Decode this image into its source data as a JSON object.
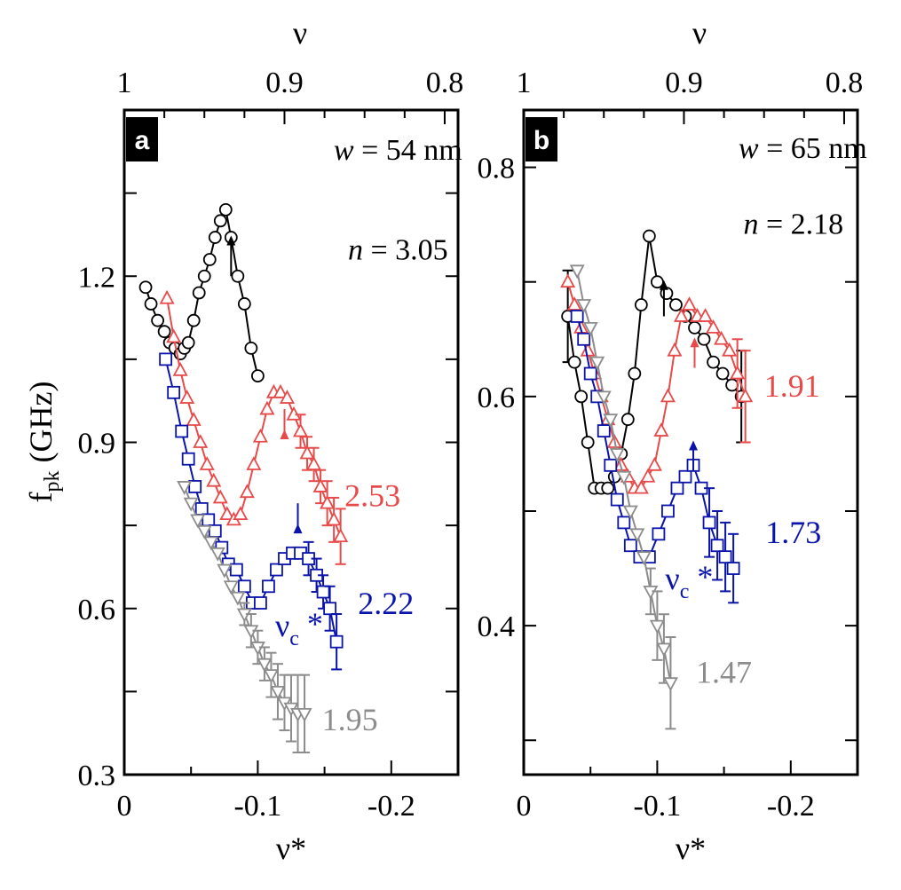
{
  "figure": {
    "ylabel_main": "f",
    "ylabel_sub": "pk",
    "ylabel_unit": " (GHz)"
  },
  "chart_data": [
    {
      "type": "scatter",
      "panel": "a",
      "width_note": {
        "var": "w",
        "text": " = 54 nm"
      },
      "density_note": {
        "var": "n",
        "text": " = 3.05"
      },
      "bottom_axis": {
        "label": "ν*",
        "range": [
          0,
          -0.25
        ],
        "ticks": [
          0,
          -0.1,
          -0.2
        ],
        "tick_labels": [
          "0",
          "-0.1",
          "-0.2"
        ]
      },
      "top_axis": {
        "label": "ν",
        "ticks": [
          1,
          0.9,
          0.8
        ],
        "tick_labels": [
          "1",
          "0.9",
          "0.8"
        ]
      },
      "y_axis": {
        "range": [
          0.3,
          1.5
        ],
        "ticks": [
          0.3,
          0.6,
          0.9,
          1.2
        ],
        "tick_labels": [
          "0.3",
          "0.6",
          "0.9",
          "1.2"
        ]
      },
      "nu_c_label": {
        "main": "ν",
        "sub": "c",
        "star": " *"
      },
      "series": [
        {
          "name": "3.05",
          "show_label": false,
          "color": "#000000",
          "marker": "circle",
          "x": [
            -0.016,
            -0.02,
            -0.025,
            -0.03,
            -0.034,
            -0.038,
            -0.042,
            -0.045,
            -0.048,
            -0.052,
            -0.056,
            -0.06,
            -0.064,
            -0.068,
            -0.072,
            -0.076,
            -0.08,
            -0.085,
            -0.09,
            -0.095,
            -0.1
          ],
          "y": [
            1.18,
            1.15,
            1.12,
            1.1,
            1.08,
            1.07,
            1.06,
            1.07,
            1.08,
            1.12,
            1.17,
            1.2,
            1.23,
            1.27,
            1.3,
            1.32,
            1.27,
            1.2,
            1.15,
            1.07,
            1.02
          ],
          "err": [
            0,
            0,
            0,
            0,
            0,
            0,
            0,
            0,
            0,
            0,
            0,
            0,
            0,
            0,
            0,
            0,
            0,
            0,
            0,
            0,
            0
          ]
        },
        {
          "name": "2.53",
          "show_label": true,
          "color": "#e84a4a",
          "marker": "triangle-up",
          "x": [
            -0.032,
            -0.037,
            -0.042,
            -0.047,
            -0.052,
            -0.057,
            -0.062,
            -0.067,
            -0.072,
            -0.077,
            -0.082,
            -0.087,
            -0.092,
            -0.097,
            -0.102,
            -0.107,
            -0.112,
            -0.117,
            -0.122,
            -0.127,
            -0.132,
            -0.137,
            -0.142,
            -0.147,
            -0.152,
            -0.157,
            -0.162
          ],
          "y": [
            1.16,
            1.09,
            1.03,
            0.98,
            0.94,
            0.9,
            0.86,
            0.83,
            0.8,
            0.77,
            0.76,
            0.77,
            0.81,
            0.86,
            0.91,
            0.96,
            0.99,
            0.99,
            0.98,
            0.95,
            0.92,
            0.88,
            0.86,
            0.82,
            0.79,
            0.76,
            0.73
          ],
          "err": [
            0,
            0,
            0,
            0,
            0,
            0,
            0,
            0,
            0,
            0,
            0,
            0,
            0,
            0,
            0,
            0,
            0,
            0,
            0,
            0,
            0.03,
            0.03,
            0.03,
            0.03,
            0.04,
            0.04,
            0.05
          ]
        },
        {
          "name": "2.22",
          "show_label": true,
          "color": "#0a14aa",
          "marker": "square",
          "x": [
            -0.031,
            -0.037,
            -0.043,
            -0.048,
            -0.053,
            -0.058,
            -0.063,
            -0.068,
            -0.073,
            -0.078,
            -0.084,
            -0.09,
            -0.096,
            -0.102,
            -0.108,
            -0.114,
            -0.12,
            -0.126,
            -0.132,
            -0.138,
            -0.144,
            -0.149,
            -0.154,
            -0.159
          ],
          "y": [
            1.05,
            0.99,
            0.92,
            0.87,
            0.82,
            0.78,
            0.76,
            0.74,
            0.71,
            0.68,
            0.67,
            0.64,
            0.61,
            0.61,
            0.64,
            0.67,
            0.69,
            0.7,
            0.7,
            0.69,
            0.66,
            0.63,
            0.6,
            0.54
          ],
          "err": [
            0,
            0,
            0,
            0,
            0,
            0,
            0,
            0,
            0,
            0,
            0,
            0,
            0,
            0,
            0,
            0,
            0,
            0,
            0,
            0.03,
            0.03,
            0.03,
            0.04,
            0.05
          ]
        },
        {
          "name": "1.95",
          "show_label": true,
          "color": "#8c8c8c",
          "marker": "triangle-down",
          "x": [
            -0.045,
            -0.05,
            -0.055,
            -0.06,
            -0.065,
            -0.07,
            -0.075,
            -0.08,
            -0.085,
            -0.09,
            -0.095,
            -0.1,
            -0.105,
            -0.11,
            -0.115,
            -0.12,
            -0.125,
            -0.13,
            -0.135
          ],
          "y": [
            0.82,
            0.79,
            0.76,
            0.74,
            0.72,
            0.7,
            0.67,
            0.64,
            0.62,
            0.59,
            0.56,
            0.53,
            0.5,
            0.48,
            0.45,
            0.43,
            0.42,
            0.41,
            0.41
          ],
          "err": [
            0,
            0,
            0,
            0,
            0,
            0,
            0,
            0,
            0,
            0.02,
            0.03,
            0.03,
            0.03,
            0.04,
            0.05,
            0.05,
            0.06,
            0.07,
            0.07
          ]
        }
      ]
    },
    {
      "type": "scatter",
      "panel": "b",
      "width_note": {
        "var": "w",
        "text": " = 65 nm"
      },
      "density_note": {
        "var": "n",
        "text": " = 2.18"
      },
      "bottom_axis": {
        "label": "ν*",
        "range": [
          0,
          -0.25
        ],
        "ticks": [
          0,
          -0.1,
          -0.2
        ],
        "tick_labels": [
          "0",
          "-0.1",
          "-0.2"
        ]
      },
      "top_axis": {
        "label": "ν",
        "ticks": [
          1,
          0.9,
          0.8
        ],
        "tick_labels": [
          "1",
          "0.9",
          "0.8"
        ]
      },
      "y_axis": {
        "range": [
          0.27,
          0.85
        ],
        "ticks": [
          0.4,
          0.6,
          0.8
        ],
        "tick_labels": [
          "0.4",
          "0.6",
          "0.8"
        ]
      },
      "nu_c_label": {
        "main": "ν",
        "sub": "c",
        "star": " *"
      },
      "series": [
        {
          "name": "2.18",
          "show_label": false,
          "color": "#000000",
          "marker": "circle",
          "x": [
            -0.033,
            -0.038,
            -0.043,
            -0.048,
            -0.053,
            -0.058,
            -0.063,
            -0.068,
            -0.073,
            -0.078,
            -0.083,
            -0.088,
            -0.094,
            -0.1,
            -0.107,
            -0.114,
            -0.121,
            -0.128,
            -0.135,
            -0.142,
            -0.149,
            -0.156,
            -0.163
          ],
          "y": [
            0.67,
            0.63,
            0.6,
            0.56,
            0.52,
            0.52,
            0.52,
            0.53,
            0.55,
            0.58,
            0.62,
            0.68,
            0.74,
            0.7,
            0.69,
            0.68,
            0.67,
            0.66,
            0.65,
            0.63,
            0.62,
            0.61,
            0.6
          ],
          "err": [
            0.04,
            0,
            0,
            0,
            0,
            0,
            0,
            0,
            0,
            0,
            0,
            0,
            0,
            0,
            0,
            0,
            0,
            0,
            0,
            0,
            0,
            0,
            0.04
          ]
        },
        {
          "name": "1.91",
          "show_label": true,
          "color": "#e84a4a",
          "marker": "triangle-up",
          "x": [
            -0.033,
            -0.038,
            -0.043,
            -0.048,
            -0.053,
            -0.058,
            -0.063,
            -0.068,
            -0.073,
            -0.078,
            -0.083,
            -0.088,
            -0.093,
            -0.098,
            -0.103,
            -0.108,
            -0.113,
            -0.118,
            -0.124,
            -0.13,
            -0.136,
            -0.142,
            -0.148,
            -0.154,
            -0.16,
            -0.166
          ],
          "y": [
            0.7,
            0.68,
            0.66,
            0.64,
            0.62,
            0.6,
            0.58,
            0.56,
            0.54,
            0.53,
            0.52,
            0.52,
            0.53,
            0.54,
            0.57,
            0.6,
            0.64,
            0.67,
            0.68,
            0.67,
            0.67,
            0.66,
            0.65,
            0.64,
            0.62,
            0.6
          ],
          "err": [
            0,
            0,
            0,
            0,
            0,
            0,
            0,
            0,
            0,
            0,
            0,
            0,
            0,
            0,
            0,
            0,
            0,
            0,
            0,
            0,
            0,
            0,
            0,
            0,
            0.03,
            0.04
          ]
        },
        {
          "name": "1.73",
          "show_label": true,
          "color": "#0a14aa",
          "marker": "square",
          "x": [
            -0.04,
            -0.045,
            -0.05,
            -0.055,
            -0.06,
            -0.065,
            -0.07,
            -0.075,
            -0.08,
            -0.087,
            -0.094,
            -0.101,
            -0.108,
            -0.115,
            -0.121,
            -0.127,
            -0.133,
            -0.139,
            -0.145,
            -0.151,
            -0.157
          ],
          "y": [
            0.67,
            0.65,
            0.62,
            0.6,
            0.57,
            0.54,
            0.51,
            0.49,
            0.47,
            0.46,
            0.46,
            0.48,
            0.5,
            0.52,
            0.53,
            0.54,
            0.52,
            0.49,
            0.47,
            0.46,
            0.45
          ],
          "err": [
            0,
            0,
            0,
            0,
            0,
            0,
            0,
            0,
            0,
            0,
            0,
            0,
            0,
            0,
            0,
            0,
            0,
            0.03,
            0.03,
            0.03,
            0.03
          ]
        },
        {
          "name": "1.47",
          "show_label": true,
          "color": "#8c8c8c",
          "marker": "triangle-down",
          "x": [
            -0.04,
            -0.045,
            -0.05,
            -0.055,
            -0.06,
            -0.065,
            -0.07,
            -0.075,
            -0.08,
            -0.085,
            -0.09,
            -0.095,
            -0.1,
            -0.105,
            -0.11
          ],
          "y": [
            0.71,
            0.68,
            0.66,
            0.63,
            0.6,
            0.58,
            0.55,
            0.53,
            0.5,
            0.48,
            0.46,
            0.43,
            0.4,
            0.38,
            0.35
          ],
          "err": [
            0,
            0,
            0,
            0,
            0,
            0,
            0,
            0,
            0,
            0,
            0,
            0.02,
            0.03,
            0.03,
            0.04
          ]
        }
      ]
    }
  ]
}
